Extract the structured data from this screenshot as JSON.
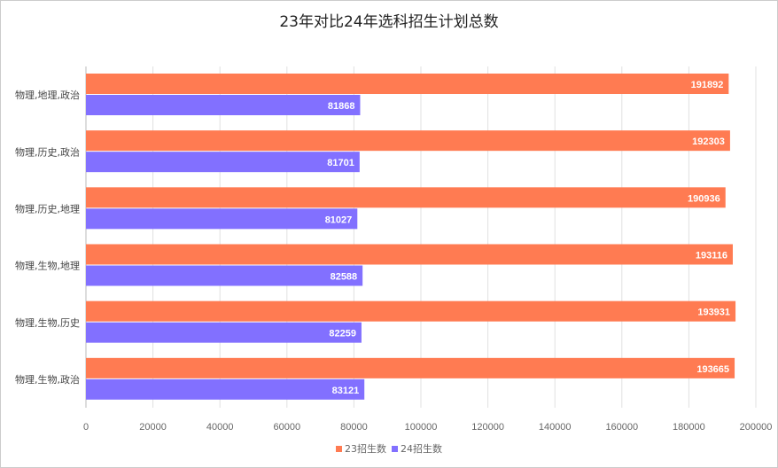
{
  "chart_data": {
    "type": "bar",
    "orientation": "horizontal",
    "title": "23年对比24年选科招生计划总数",
    "categories": [
      "物理,地理,政治",
      "物理,历史,政治",
      "物理,历史,地理",
      "物理,生物,地理",
      "物理,生物,历史",
      "物理,生物,政治"
    ],
    "series": [
      {
        "name": "23招生数",
        "color": "#FF7B52",
        "values": [
          191892,
          192303,
          190936,
          193116,
          193931,
          193665
        ]
      },
      {
        "name": "24招生数",
        "color": "#8270FF",
        "values": [
          81868,
          81701,
          81027,
          82588,
          82259,
          83121
        ]
      }
    ],
    "xlim": [
      0,
      200000
    ],
    "xticks": [
      0,
      20000,
      40000,
      60000,
      80000,
      100000,
      120000,
      140000,
      160000,
      180000,
      200000
    ],
    "grid": true,
    "data_labels": true,
    "legend": "bottom"
  }
}
